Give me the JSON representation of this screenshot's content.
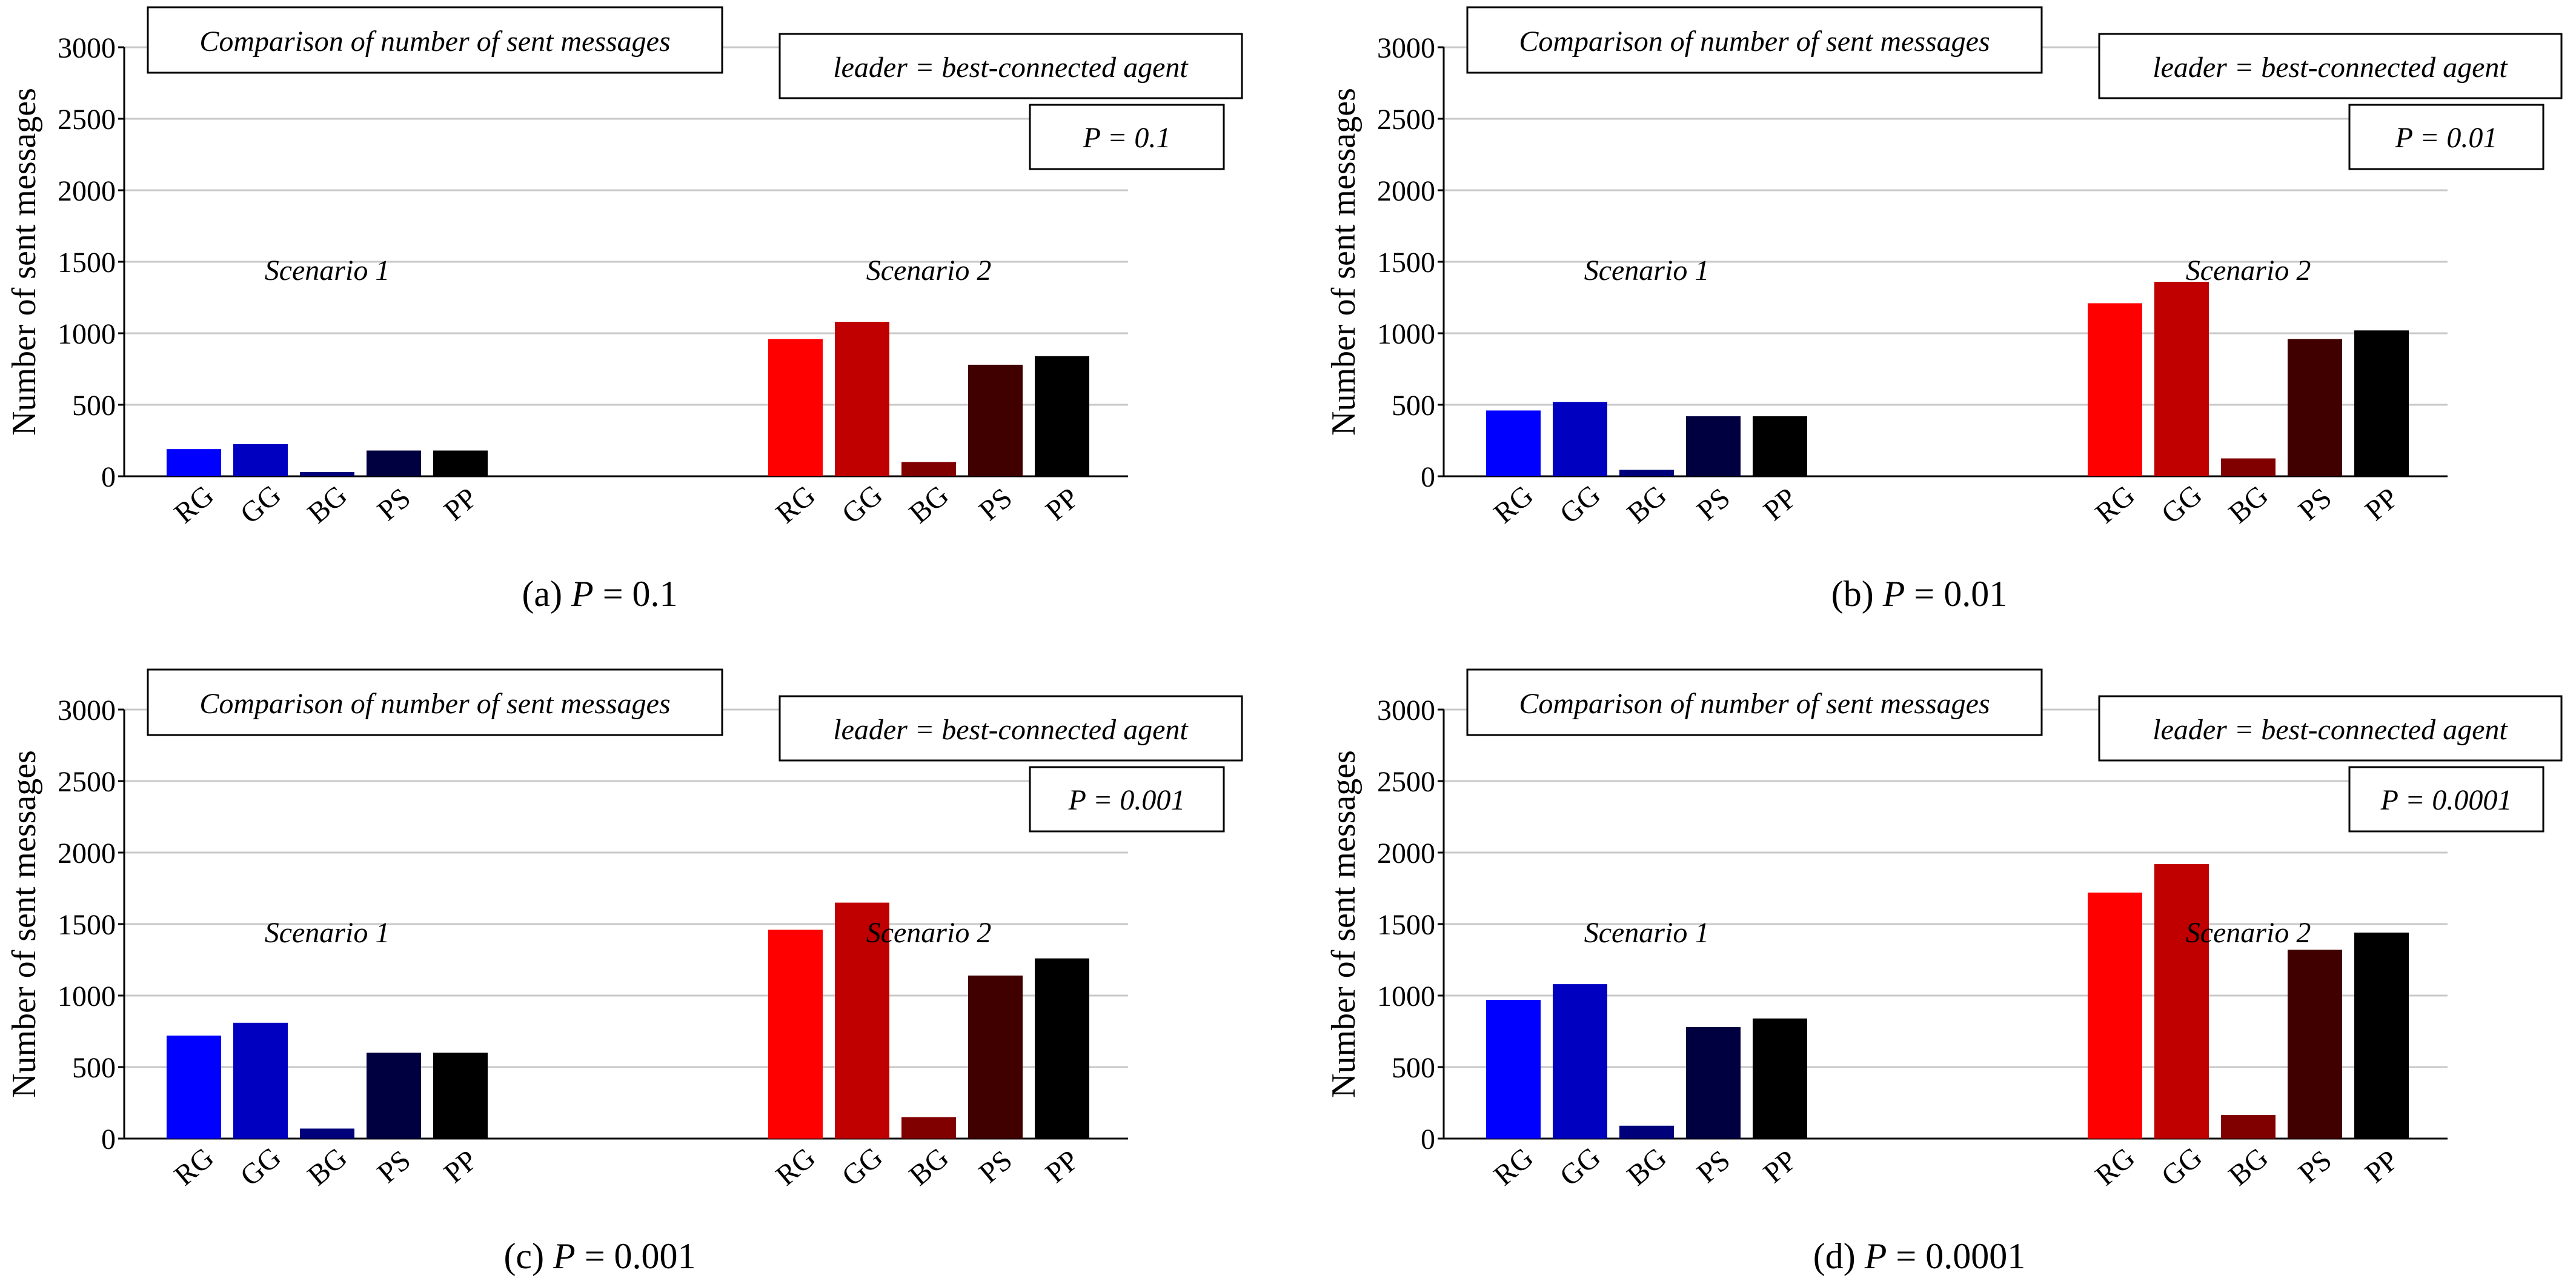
{
  "chart_data": [
    {
      "type": "bar",
      "caption_prefix": "(a)",
      "caption_var": "P",
      "caption_value": "= 0.1",
      "title": "Comparison of number of sent messages",
      "leader_label": "leader = best-connected agent",
      "p_label": "P = 0.1",
      "ylabel": "Number of sent messages",
      "ylim": [
        0,
        3000
      ],
      "yticks": [
        0,
        500,
        1000,
        1500,
        2000,
        2500,
        3000
      ],
      "grid": true,
      "groups": [
        {
          "name": "Scenario 1",
          "categories": [
            "RG",
            "GG",
            "BG",
            "PS",
            "PP"
          ],
          "values": [
            190,
            225,
            30,
            180,
            180
          ],
          "colors": [
            "#0000ff",
            "#0000c0",
            "#00007a",
            "#000040",
            "#000000"
          ]
        },
        {
          "name": "Scenario 2",
          "categories": [
            "RG",
            "GG",
            "BG",
            "PS",
            "PP"
          ],
          "values": [
            960,
            1080,
            100,
            780,
            840
          ],
          "colors": [
            "#ff0000",
            "#c00000",
            "#800000",
            "#400000",
            "#000000"
          ]
        }
      ]
    },
    {
      "type": "bar",
      "caption_prefix": "(b)",
      "caption_var": "P",
      "caption_value": "= 0.01",
      "title": "Comparison of number of sent messages",
      "leader_label": "leader = best-connected agent",
      "p_label": "P = 0.01",
      "ylabel": "Number of sent messages",
      "ylim": [
        0,
        3000
      ],
      "yticks": [
        0,
        500,
        1000,
        1500,
        2000,
        2500,
        3000
      ],
      "grid": true,
      "groups": [
        {
          "name": "Scenario 1",
          "categories": [
            "RG",
            "GG",
            "BG",
            "PS",
            "PP"
          ],
          "values": [
            460,
            520,
            45,
            420,
            420
          ],
          "colors": [
            "#0000ff",
            "#0000c0",
            "#00007a",
            "#000040",
            "#000000"
          ]
        },
        {
          "name": "Scenario 2",
          "categories": [
            "RG",
            "GG",
            "BG",
            "PS",
            "PP"
          ],
          "values": [
            1210,
            1360,
            125,
            960,
            1020
          ],
          "colors": [
            "#ff0000",
            "#c00000",
            "#800000",
            "#400000",
            "#000000"
          ]
        }
      ]
    },
    {
      "type": "bar",
      "caption_prefix": "(c)",
      "caption_var": "P",
      "caption_value": "= 0.001",
      "title": "Comparison of number of sent messages",
      "leader_label": "leader = best-connected agent",
      "p_label": "P = 0.001",
      "ylabel": "Number of sent messages",
      "ylim": [
        0,
        3000
      ],
      "yticks": [
        0,
        500,
        1000,
        1500,
        2000,
        2500,
        3000
      ],
      "grid": true,
      "groups": [
        {
          "name": "Scenario 1",
          "categories": [
            "RG",
            "GG",
            "BG",
            "PS",
            "PP"
          ],
          "values": [
            720,
            810,
            70,
            600,
            600
          ],
          "colors": [
            "#0000ff",
            "#0000c0",
            "#00007a",
            "#000040",
            "#000000"
          ]
        },
        {
          "name": "Scenario 2",
          "categories": [
            "RG",
            "GG",
            "BG",
            "PS",
            "PP"
          ],
          "values": [
            1460,
            1650,
            150,
            1140,
            1260
          ],
          "colors": [
            "#ff0000",
            "#c00000",
            "#800000",
            "#400000",
            "#000000"
          ]
        }
      ]
    },
    {
      "type": "bar",
      "caption_prefix": "(d)",
      "caption_var": "P",
      "caption_value": "= 0.0001",
      "title": "Comparison of number of sent messages",
      "leader_label": "leader = best-connected agent",
      "p_label": "P = 0.0001",
      "ylabel": "Number of sent messages",
      "ylim": [
        0,
        3000
      ],
      "yticks": [
        0,
        500,
        1000,
        1500,
        2000,
        2500,
        3000
      ],
      "grid": true,
      "groups": [
        {
          "name": "Scenario 1",
          "categories": [
            "RG",
            "GG",
            "BG",
            "PS",
            "PP"
          ],
          "values": [
            970,
            1080,
            90,
            780,
            840
          ],
          "colors": [
            "#0000ff",
            "#0000c0",
            "#00007a",
            "#000040",
            "#000000"
          ]
        },
        {
          "name": "Scenario 2",
          "categories": [
            "RG",
            "GG",
            "BG",
            "PS",
            "PP"
          ],
          "values": [
            1720,
            1920,
            165,
            1320,
            1440
          ],
          "colors": [
            "#ff0000",
            "#c00000",
            "#800000",
            "#400000",
            "#000000"
          ]
        }
      ]
    }
  ]
}
